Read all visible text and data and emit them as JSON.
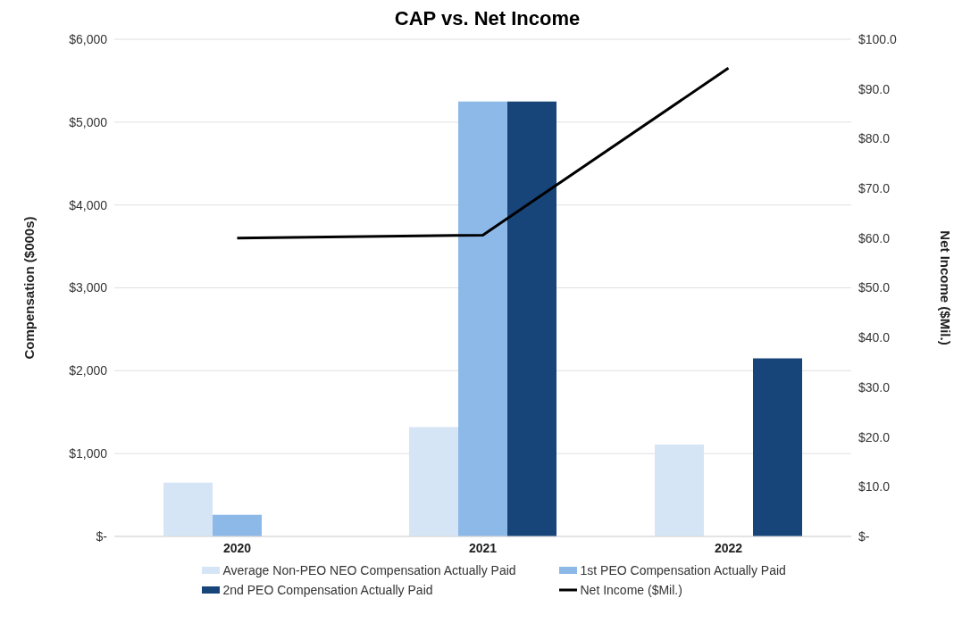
{
  "chart_data": {
    "type": "bar",
    "title": "CAP vs. Net Income",
    "ylabel": "Compensation ($000s)",
    "y2label": "Net Income ($Mil.)",
    "categories": [
      "2020",
      "2021",
      "2022"
    ],
    "series": [
      {
        "name": "Average Non-PEO NEO Compensation Actually Paid",
        "color": "#d6e5f5",
        "values": [
          650,
          1320,
          1110
        ]
      },
      {
        "name": "1st PEO Compensation Actually Paid",
        "color": "#8db9e8",
        "values": [
          260,
          5250,
          null
        ]
      },
      {
        "name": "2nd PEO Compensation Actually Paid",
        "color": "#17457a",
        "values": [
          null,
          5250,
          2150
        ]
      },
      {
        "name": "Net Income ($Mil.)",
        "color": "#000000",
        "type": "line",
        "axis": "y2",
        "values": [
          60.0,
          60.6,
          94.2
        ]
      }
    ],
    "ylim": [
      0,
      6000
    ],
    "yticks": [
      {
        "value": 0,
        "label": "$-"
      },
      {
        "value": 1000,
        "label": "$1,000"
      },
      {
        "value": 2000,
        "label": "$2,000"
      },
      {
        "value": 3000,
        "label": "$3,000"
      },
      {
        "value": 4000,
        "label": "$4,000"
      },
      {
        "value": 5000,
        "label": "$5,000"
      },
      {
        "value": 6000,
        "label": "$6,000"
      }
    ],
    "y2lim": [
      0,
      100
    ],
    "y2ticks": [
      {
        "value": 0,
        "label": "$-"
      },
      {
        "value": 10,
        "label": "$10.0"
      },
      {
        "value": 20,
        "label": "$20.0"
      },
      {
        "value": 30,
        "label": "$30.0"
      },
      {
        "value": 40,
        "label": "$40.0"
      },
      {
        "value": 50,
        "label": "$50.0"
      },
      {
        "value": 60,
        "label": "$60.0"
      },
      {
        "value": 70,
        "label": "$70.0"
      },
      {
        "value": 80,
        "label": "$80.0"
      },
      {
        "value": 90,
        "label": "$90.0"
      },
      {
        "value": 100,
        "label": "$100.0"
      }
    ],
    "grid": "y",
    "legend": "bottom",
    "marker": "none",
    "line_style": "solid"
  }
}
